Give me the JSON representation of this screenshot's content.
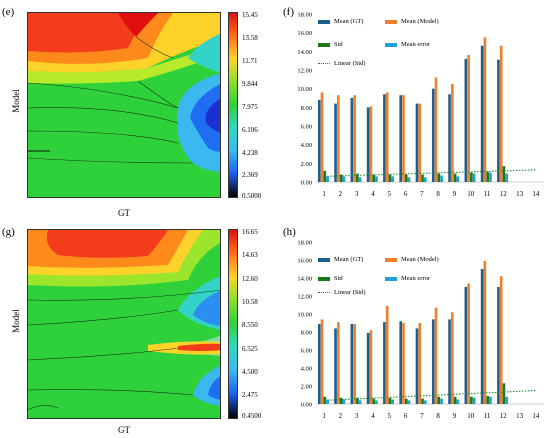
{
  "panels": {
    "e": {
      "label": "(e)",
      "xlabel": "GT",
      "ylabel": "Model",
      "colorbar": [
        "15.45",
        "13.58",
        "11.71",
        "9.844",
        "7.975",
        "6.106",
        "4.238",
        "2.369",
        "0.5000"
      ]
    },
    "g": {
      "label": "(g)",
      "xlabel": "GT",
      "ylabel": "Model",
      "colorbar": [
        "16.65",
        "14.63",
        "12.60",
        "10.58",
        "8.550",
        "6.525",
        "4.500",
        "2.475",
        "0.4500"
      ]
    },
    "f": {
      "label": "(f)"
    },
    "h": {
      "label": "(h)"
    }
  },
  "legend": {
    "mean_gt": "Mean (GT)",
    "mean_model": "Mean (Model)",
    "std": "Std",
    "mean_error": "Mean error",
    "linear_std": "Linear (Std)"
  },
  "colors": {
    "mean_gt": "#1f5f8b",
    "mean_model": "#f07f2d",
    "std": "#1a7a1a",
    "mean_error": "#1ea0d8",
    "linear_std": "#1b8b3b"
  },
  "chart_data": [
    {
      "type": "bar",
      "panel": "f",
      "categories": [
        "1",
        "2",
        "3",
        "4",
        "5",
        "6",
        "7",
        "8",
        "9",
        "10",
        "11",
        "12",
        "13",
        "14"
      ],
      "ylim": [
        0,
        18
      ],
      "yticks": [
        "0.00",
        "2.00",
        "4.00",
        "6.00",
        "8.00",
        "10.00",
        "12.00",
        "14.00",
        "16.00",
        "18.00"
      ],
      "series": [
        {
          "name": "Mean (GT)",
          "values": [
            8.8,
            8.4,
            9.0,
            8.0,
            9.4,
            9.3,
            8.4,
            10.0,
            9.4,
            13.2,
            14.6,
            13.1,
            null,
            null
          ]
        },
        {
          "name": "Mean (Model)",
          "values": [
            9.6,
            9.3,
            9.3,
            8.1,
            9.6,
            9.3,
            8.4,
            11.2,
            10.5,
            13.6,
            15.5,
            14.6,
            null,
            null
          ]
        },
        {
          "name": "Std",
          "values": [
            1.2,
            0.8,
            0.9,
            0.8,
            0.8,
            0.8,
            0.8,
            0.9,
            0.9,
            1.0,
            1.1,
            1.7,
            null,
            null
          ]
        },
        {
          "name": "Mean error",
          "values": [
            0.6,
            0.6,
            0.5,
            0.6,
            0.6,
            0.5,
            0.5,
            0.7,
            0.6,
            0.9,
            1.0,
            0.9,
            null,
            null
          ]
        }
      ],
      "trend": {
        "name": "Linear (Std)",
        "from": 0.6,
        "to": 1.3
      }
    },
    {
      "type": "bar",
      "panel": "h",
      "categories": [
        "1",
        "2",
        "3",
        "4",
        "5",
        "6",
        "7",
        "8",
        "9",
        "10",
        "11",
        "12",
        "13",
        "14"
      ],
      "ylim": [
        0,
        18
      ],
      "yticks": [
        "0.00",
        "2.00",
        "4.00",
        "6.00",
        "8.00",
        "10.00",
        "12.00",
        "14.00",
        "16.00",
        "18.00"
      ],
      "series": [
        {
          "name": "Mean (GT)",
          "values": [
            8.9,
            8.4,
            8.9,
            7.9,
            9.1,
            9.2,
            8.4,
            9.4,
            9.4,
            13.0,
            15.0,
            13.0,
            null,
            null
          ]
        },
        {
          "name": "Mean (Model)",
          "values": [
            9.4,
            9.1,
            8.9,
            8.2,
            10.9,
            9.0,
            9.0,
            10.7,
            10.2,
            13.4,
            15.9,
            14.2,
            null,
            null
          ]
        },
        {
          "name": "Std",
          "values": [
            0.8,
            0.7,
            0.7,
            0.6,
            0.7,
            0.6,
            0.6,
            0.8,
            0.8,
            0.8,
            0.9,
            2.3,
            null,
            null
          ]
        },
        {
          "name": "Mean error",
          "values": [
            0.5,
            0.5,
            0.4,
            0.4,
            0.5,
            0.4,
            0.4,
            0.6,
            0.5,
            0.7,
            0.8,
            0.8,
            null,
            null
          ]
        }
      ],
      "trend": {
        "name": "Linear (Std)",
        "from": 0.4,
        "to": 1.5
      }
    }
  ]
}
